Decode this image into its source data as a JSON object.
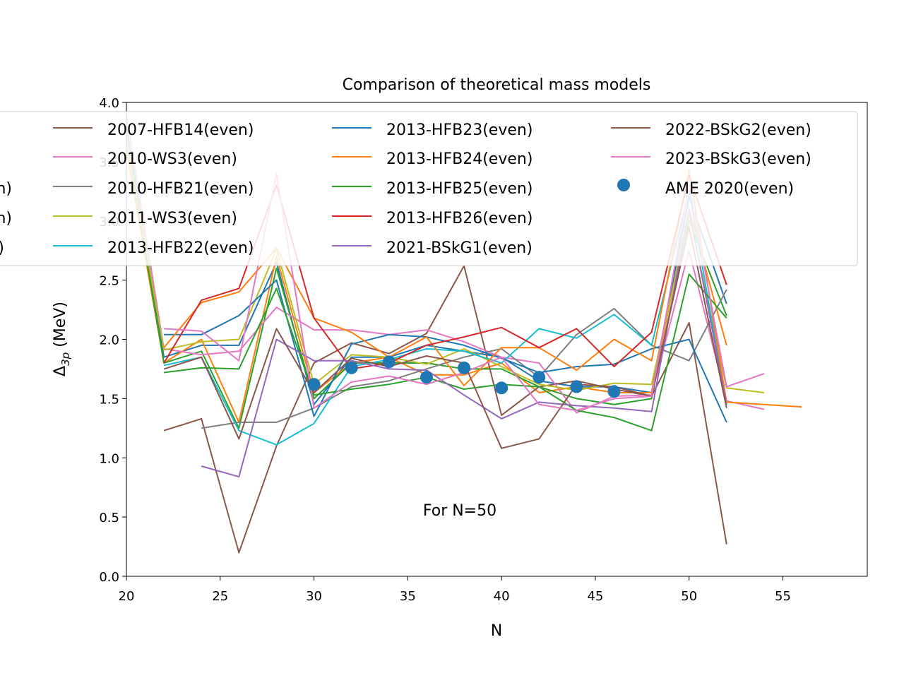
{
  "chart_data": {
    "type": "line",
    "title": "Comparison of theoretical mass models",
    "xlabel": "N",
    "ylabel_main": "Δ",
    "ylabel_sub": "3p",
    "ylabel_unit": " (MeV)",
    "annotation": "For N=50",
    "xlim": [
      20,
      59.5
    ],
    "ylim": [
      0.0,
      4.0
    ],
    "xticks": [
      20,
      25,
      30,
      35,
      40,
      45,
      50,
      55
    ],
    "yticks": [
      0.0,
      0.5,
      1.0,
      1.5,
      2.0,
      2.5,
      3.0,
      3.5,
      4.0
    ],
    "xtick_labels": [
      "20",
      "25",
      "30",
      "35",
      "40",
      "45",
      "50",
      "55"
    ],
    "ytick_labels": [
      "0.0",
      "0.5",
      "1.0",
      "1.5",
      "2.0",
      "2.5",
      "3.0",
      "3.5",
      "4.0"
    ],
    "grid": false,
    "legend_position": "upper",
    "hidden_legend_fragments": [
      "n)",
      "n)",
      ")"
    ],
    "series": [
      {
        "name": "",
        "color": "#1f77b4",
        "legend": false,
        "x": [
          20,
          22,
          24,
          26,
          28,
          30,
          32,
          34,
          36,
          38,
          40,
          42,
          44,
          46,
          48,
          50,
          52
        ],
        "y": [
          3.8,
          1.85,
          1.95,
          1.95,
          2.65,
          1.45,
          1.85,
          1.85,
          1.95,
          1.9,
          1.85,
          1.65,
          1.6,
          1.6,
          1.55,
          3.2,
          2.3
        ]
      },
      {
        "name": "",
        "color": "#ff7f0e",
        "legend": false,
        "x": [
          20,
          22,
          24,
          26,
          28,
          30,
          32,
          34,
          36,
          38,
          40,
          42,
          44,
          46,
          48,
          50,
          52
        ],
        "y": [
          3.6,
          1.8,
          2.0,
          1.3,
          2.7,
          1.55,
          1.8,
          1.85,
          1.7,
          1.7,
          1.8,
          1.55,
          1.6,
          1.55,
          1.55,
          3.1,
          1.95
        ]
      },
      {
        "name": "",
        "color": "#2ca02c",
        "legend": false,
        "x": [
          20,
          22,
          24,
          26,
          28,
          30,
          32,
          34,
          36,
          38,
          40,
          42,
          44,
          46,
          48,
          50,
          52
        ],
        "y": [
          3.7,
          1.8,
          1.9,
          1.25,
          2.6,
          1.5,
          1.8,
          1.8,
          1.8,
          1.75,
          1.75,
          1.6,
          1.5,
          1.45,
          1.5,
          3.0,
          2.2
        ]
      },
      {
        "name": "2007-HFB14(even)",
        "color": "#8c564b",
        "legend": true,
        "x": [
          22,
          24,
          26,
          28,
          30,
          32,
          34,
          36,
          38,
          40,
          42,
          44,
          46,
          48,
          50,
          52
        ],
        "y": [
          1.23,
          1.33,
          0.2,
          1.1,
          1.8,
          1.97,
          1.88,
          2.05,
          2.62,
          1.36,
          1.6,
          1.65,
          1.58,
          1.52,
          2.14,
          0.27
        ]
      },
      {
        "name": "2010-WS3(even)",
        "color": "#e377c2",
        "legend": true,
        "x": [
          20,
          22,
          24,
          26,
          28,
          30,
          32,
          34,
          36,
          38,
          40,
          42,
          44,
          46,
          48,
          50,
          52,
          54
        ],
        "y": [
          3.9,
          1.92,
          1.87,
          1.9,
          2.27,
          2.08,
          2.08,
          2.04,
          2.08,
          1.98,
          1.85,
          1.8,
          1.38,
          1.52,
          1.53,
          2.75,
          1.48,
          1.41
        ]
      },
      {
        "name": "2010-HFB21(even)",
        "color": "#7f7f7f",
        "legend": true,
        "x": [
          24,
          26,
          28,
          30,
          32,
          34,
          36,
          38,
          40,
          42,
          44,
          46,
          48,
          50,
          52
        ],
        "y": [
          1.25,
          1.3,
          1.3,
          1.42,
          1.6,
          1.65,
          1.75,
          1.85,
          1.92,
          1.68,
          2.04,
          2.26,
          1.95,
          1.82,
          2.42
        ]
      },
      {
        "name": "2011-WS3(even)",
        "color": "#bcbd22",
        "legend": true,
        "x": [
          20,
          22,
          24,
          26,
          28,
          30,
          32,
          34,
          36,
          38,
          40,
          42,
          44,
          46,
          48,
          50,
          52,
          54
        ],
        "y": [
          3.7,
          1.91,
          1.98,
          2.0,
          2.76,
          1.62,
          1.87,
          1.85,
          1.79,
          1.92,
          1.77,
          1.62,
          1.57,
          1.63,
          1.62,
          3.05,
          1.59,
          1.55
        ]
      },
      {
        "name": "2013-HFB22(even)",
        "color": "#17becf",
        "legend": true,
        "x": [
          22,
          24,
          26,
          28,
          30,
          32,
          34,
          36,
          38,
          40,
          42,
          44,
          46,
          48,
          50,
          52
        ],
        "y": [
          1.78,
          1.85,
          1.23,
          1.11,
          1.29,
          1.77,
          1.83,
          1.92,
          1.9,
          1.8,
          2.09,
          2.01,
          2.21,
          1.95,
          3.25,
          1.45
        ]
      },
      {
        "name": "2013-HFB23(even)",
        "color": "#1f77b4",
        "legend": true,
        "x": [
          22,
          24,
          26,
          28,
          30,
          32,
          34,
          36,
          38,
          40,
          42,
          44,
          46,
          48,
          50,
          52
        ],
        "y": [
          2.04,
          2.04,
          2.2,
          2.5,
          1.35,
          1.96,
          2.04,
          2.02,
          1.95,
          1.84,
          1.72,
          1.77,
          1.79,
          1.92,
          2.0,
          1.3
        ]
      },
      {
        "name": "2013-HFB24(even)",
        "color": "#ff7f0e",
        "legend": true,
        "x": [
          22,
          24,
          26,
          28,
          30,
          32,
          34,
          36,
          38,
          40,
          42,
          44,
          46,
          48,
          50,
          52,
          54,
          56
        ],
        "y": [
          1.93,
          2.31,
          2.4,
          2.77,
          2.18,
          2.06,
          1.85,
          2.02,
          1.61,
          1.93,
          1.93,
          1.74,
          2.0,
          1.82,
          3.43,
          1.47,
          1.45,
          1.43
        ]
      },
      {
        "name": "2013-HFB25(even)",
        "color": "#2ca02c",
        "legend": true,
        "x": [
          22,
          24,
          26,
          28,
          30,
          32,
          34,
          36,
          38,
          40,
          42,
          44,
          46,
          48,
          50,
          52
        ],
        "y": [
          1.72,
          1.76,
          1.75,
          2.43,
          1.53,
          1.58,
          1.62,
          1.68,
          1.58,
          1.62,
          1.6,
          1.4,
          1.34,
          1.23,
          2.55,
          2.18
        ]
      },
      {
        "name": "2013-HFB26(even)",
        "color": "#d62728",
        "legend": true,
        "x": [
          22,
          24,
          26,
          28,
          30,
          32,
          34,
          36,
          38,
          40,
          42,
          44,
          46,
          48,
          50,
          52
        ],
        "y": [
          1.8,
          2.33,
          2.43,
          3.3,
          2.18,
          1.75,
          1.8,
          1.95,
          2.02,
          2.1,
          1.93,
          2.09,
          1.77,
          2.06,
          3.38,
          2.46
        ]
      },
      {
        "name": "2021-BSkG1(even)",
        "color": "#9467bd",
        "legend": true,
        "x": [
          24,
          26,
          28,
          30,
          32,
          34,
          36,
          38,
          40,
          42,
          44,
          46,
          48,
          50,
          52
        ],
        "y": [
          0.93,
          0.84,
          2.0,
          1.82,
          1.82,
          1.75,
          1.74,
          1.53,
          1.33,
          1.47,
          1.44,
          1.42,
          1.39,
          3.1,
          1.45
        ]
      },
      {
        "name": "2022-BSkG2(even)",
        "color": "#8c564b",
        "legend": true,
        "x": [
          22,
          24,
          26,
          28,
          30,
          32,
          34,
          36,
          38,
          40,
          42,
          44,
          46,
          48,
          50,
          52
        ],
        "y": [
          1.75,
          1.85,
          1.16,
          2.09,
          1.55,
          1.84,
          1.77,
          1.86,
          1.8,
          1.08,
          1.16,
          1.62,
          1.6,
          1.52,
          2.95,
          1.42
        ]
      },
      {
        "name": "2023-BSkG3(even)",
        "color": "#e377c2",
        "legend": true,
        "x": [
          22,
          24,
          26,
          28,
          30,
          32,
          34,
          36,
          38,
          40,
          42,
          44,
          46,
          48,
          50,
          52,
          54
        ],
        "y": [
          2.09,
          2.07,
          1.82,
          3.4,
          1.42,
          1.64,
          1.69,
          1.62,
          1.72,
          1.85,
          1.45,
          1.4,
          1.5,
          1.52,
          3.3,
          1.6,
          1.71
        ]
      },
      {
        "name": "AME 2020(even)",
        "color": "#1f77b4",
        "legend": true,
        "type": "scatter",
        "x": [
          30,
          32,
          34,
          36,
          38,
          40,
          42,
          44,
          46
        ],
        "y": [
          1.62,
          1.76,
          1.81,
          1.68,
          1.76,
          1.59,
          1.68,
          1.6,
          1.56
        ]
      }
    ]
  }
}
